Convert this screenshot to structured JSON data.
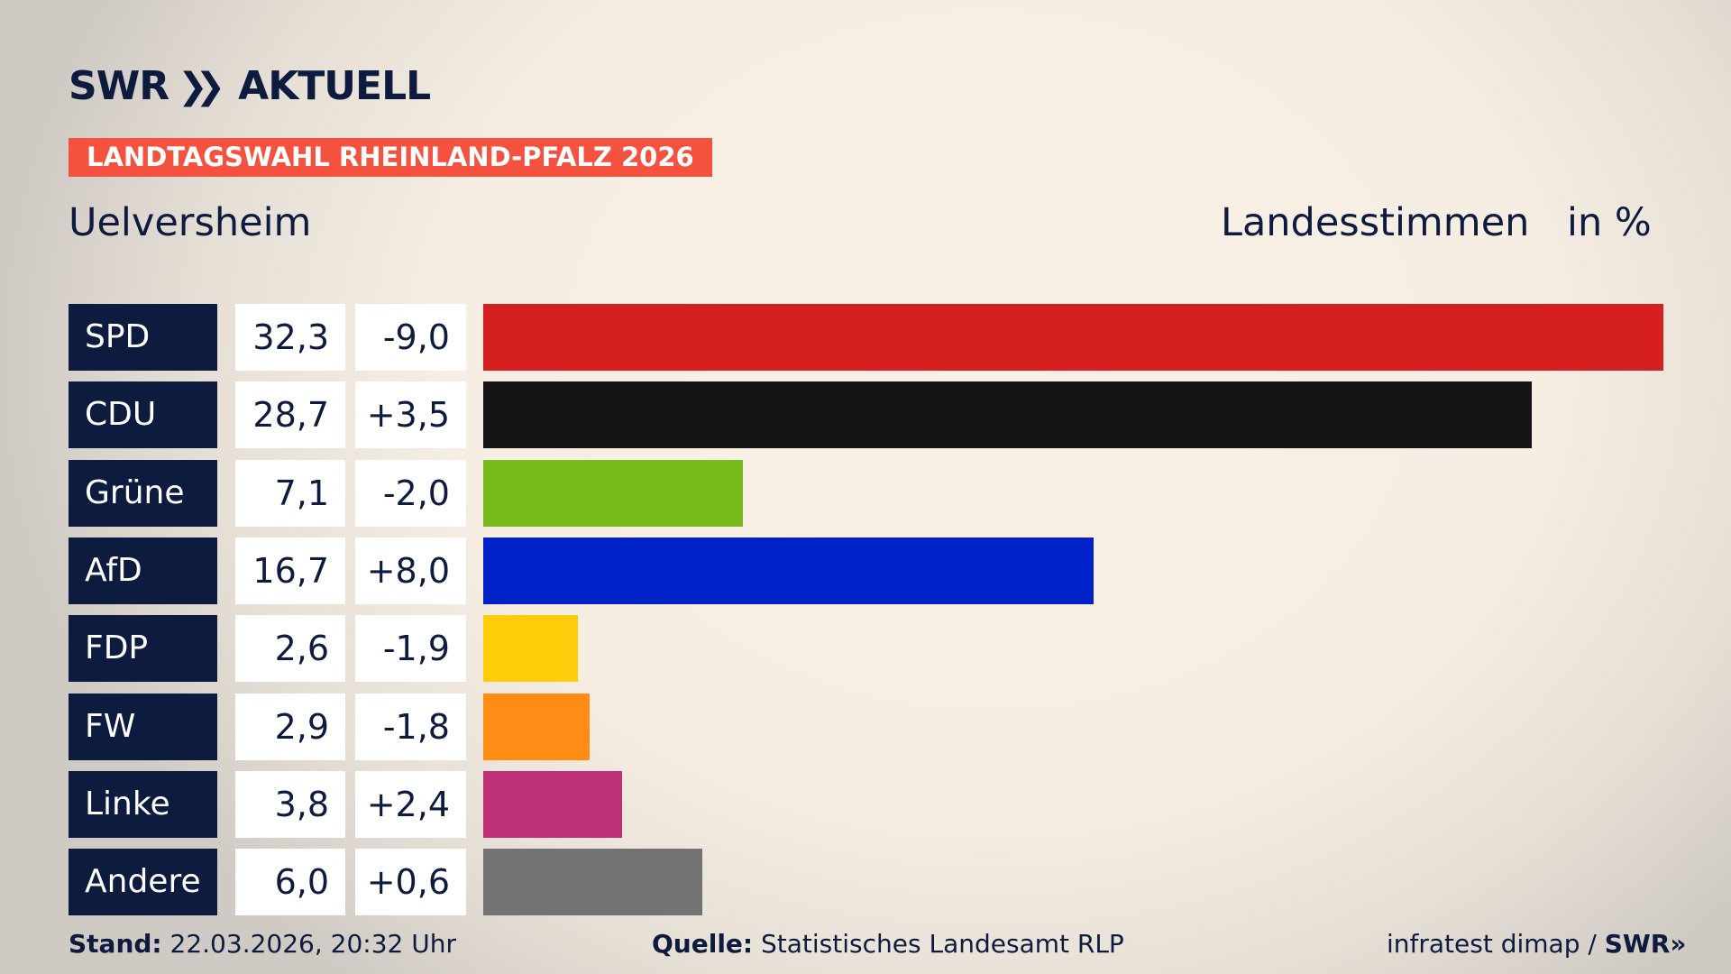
{
  "header": {
    "logo": "SWR",
    "logo_suffix": "AKTUELL",
    "banner": "LANDTAGSWAHL RHEINLAND-PFALZ 2026",
    "region": "Uelversheim",
    "metric": "Landesstimmen",
    "unit": "in %"
  },
  "chart_data": {
    "type": "bar",
    "orientation": "horizontal",
    "categories": [
      "SPD",
      "CDU",
      "Grüne",
      "AfD",
      "FDP",
      "FW",
      "Linke",
      "Andere"
    ],
    "values": [
      32.3,
      28.7,
      7.1,
      16.7,
      2.6,
      2.9,
      3.8,
      6.0
    ],
    "value_labels": [
      "32,3",
      "28,7",
      "7,1",
      "16,7",
      "2,6",
      "2,9",
      "3,8",
      "6,0"
    ],
    "diff_labels": [
      "-9,0",
      "+3,5",
      "-2,0",
      "+8,0",
      "-1,9",
      "-1,8",
      "+2,4",
      "+0,6"
    ],
    "colors": [
      "#d61f1f",
      "#141414",
      "#78bc1b",
      "#0021c8",
      "#ffcc0a",
      "#ff8c14",
      "#bd3075",
      "#737373"
    ]
  },
  "footer": {
    "stand_label": "Stand:",
    "stand_value": "22.03.2026, 20:32 Uhr",
    "source_label": "Quelle:",
    "source_value": "Statistisches Landesamt RLP",
    "credit": "infratest dimap /",
    "credit_logo": "SWR"
  }
}
